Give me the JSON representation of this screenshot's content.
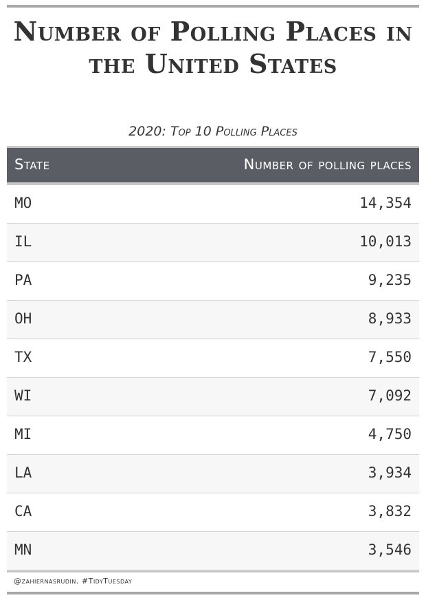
{
  "chart_data": {
    "type": "table",
    "title": "Number of Polling Places in the United States",
    "subtitle": "2020: Top 10 Polling Places",
    "columns": [
      "State",
      "Number of polling places"
    ],
    "rows": [
      {
        "state": "MO",
        "value": "14,354"
      },
      {
        "state": "IL",
        "value": "10,013"
      },
      {
        "state": "PA",
        "value": "9,235"
      },
      {
        "state": "OH",
        "value": "8,933"
      },
      {
        "state": "TX",
        "value": "7,550"
      },
      {
        "state": "WI",
        "value": "7,092"
      },
      {
        "state": "MI",
        "value": "4,750"
      },
      {
        "state": "LA",
        "value": "3,934"
      },
      {
        "state": "CA",
        "value": "3,832"
      },
      {
        "state": "MN",
        "value": "3,546"
      }
    ],
    "caption": "@zahiernasrudin. #TidyTuesday"
  },
  "colors": {
    "header_background": "#5a5e64",
    "header_text": "#ffffff",
    "rule": "#a8a8a8",
    "text": "#333333"
  }
}
